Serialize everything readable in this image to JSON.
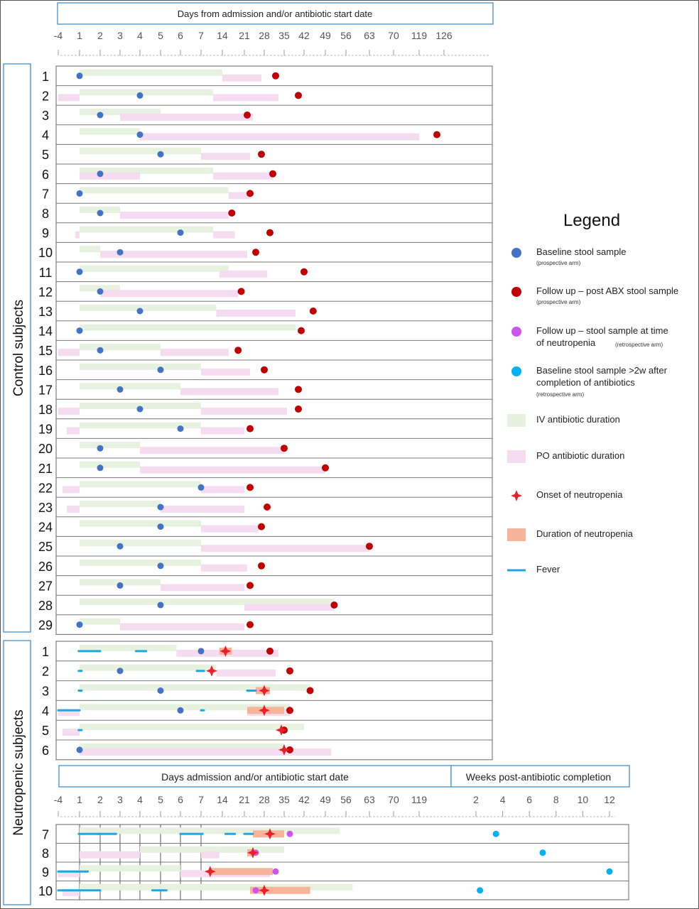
{
  "header_top": "Days from admission and/or antibiotic start date",
  "header_bottom": "Days admission and/or antibiotic start date",
  "header_weeks": "Weeks post-antibiotic completion",
  "group_control": "Control subjects",
  "group_neutro": "Neutropenic subjects",
  "top_ticks": [
    "-4",
    "1",
    "2",
    "3",
    "4",
    "5",
    "6",
    "7",
    "14",
    "21",
    "28",
    "35",
    "42",
    "49",
    "56",
    "63",
    "70",
    "119",
    "126"
  ],
  "bottom_ticks": [
    "-4",
    "1",
    "2",
    "3",
    "4",
    "5",
    "6",
    "7",
    "14",
    "21",
    "28",
    "35",
    "42",
    "49",
    "56",
    "63",
    "70",
    "119"
  ],
  "week_ticks": [
    "2",
    "4",
    "6",
    "8",
    "10",
    "12"
  ],
  "legend": {
    "title": "Legend",
    "items": [
      {
        "key": "baseline",
        "label": "Baseline stool sample",
        "sub": "(prospective arm)",
        "color": "#4472c4"
      },
      {
        "key": "followup",
        "label": "Follow up – post ABX stool sample",
        "sub": "(prospective arm)",
        "color": "#c00000"
      },
      {
        "key": "neutro_sample",
        "label": "Follow up – stool sample at time",
        "label2": "of neutropenia",
        "sub": "(retrospective arm)",
        "color": "#cc55ee"
      },
      {
        "key": "baseline2w",
        "label": "Baseline stool sample >2w after",
        "label2": "completion of antibiotics",
        "sub": "(retrospective arm)",
        "color": "#00b0f0"
      },
      {
        "key": "iv",
        "label": "IV antibiotic duration",
        "color": "#e6f2df"
      },
      {
        "key": "po",
        "label": "PO antibiotic duration",
        "color": "#f6dcf1"
      },
      {
        "key": "onset",
        "label": "Onset of neutropenia",
        "color": "#e8202a"
      },
      {
        "key": "dur_neutro",
        "label": "Duration of neutropenia",
        "color": "#f6b59a"
      },
      {
        "key": "fever",
        "label": "Fever",
        "color": "#1ea6e0"
      }
    ]
  },
  "control_subjects": [
    {
      "id": "1",
      "iv": [
        1,
        14
      ],
      "po": [
        14,
        27
      ],
      "baseline": 1,
      "followup": 32
    },
    {
      "id": "2",
      "iv": [
        1,
        11
      ],
      "po": [
        [
          -4,
          1
        ],
        [
          11,
          33
        ]
      ],
      "baseline": 4,
      "followup": 40
    },
    {
      "id": "3",
      "iv": [
        1,
        5
      ],
      "po": [
        3,
        24
      ],
      "baseline": 2,
      "followup": 22
    },
    {
      "id": "4",
      "iv": [
        1,
        4
      ],
      "po": [
        4,
        119
      ],
      "baseline": 4,
      "followup": 124
    },
    {
      "id": "5",
      "iv": [
        1,
        7
      ],
      "po": [
        7,
        23
      ],
      "baseline": 5,
      "followup": 27
    },
    {
      "id": "6",
      "iv": [
        1,
        11
      ],
      "po": [
        [
          1,
          4
        ],
        [
          11,
          31
        ]
      ],
      "baseline": 2,
      "followup": 31
    },
    {
      "id": "7",
      "iv": [
        1,
        16
      ],
      "po": [
        16,
        23
      ],
      "baseline": 1,
      "followup": 23
    },
    {
      "id": "8",
      "iv": [
        1,
        3
      ],
      "po": [
        3,
        16
      ],
      "baseline": 2,
      "followup": 17
    },
    {
      "id": "9",
      "iv": [
        1,
        11
      ],
      "po": [
        [
          0,
          1
        ],
        [
          11,
          18
        ]
      ],
      "baseline": 6,
      "followup": 30
    },
    {
      "id": "10",
      "iv": [
        1,
        2
      ],
      "po": [
        2,
        22
      ],
      "baseline": 3,
      "followup": 25
    },
    {
      "id": "11",
      "iv": [
        1,
        16
      ],
      "po": [
        13,
        29
      ],
      "baseline": 1,
      "followup": 42
    },
    {
      "id": "12",
      "iv": [
        1,
        3
      ],
      "po": [
        2,
        19
      ],
      "baseline": 2,
      "followup": 20
    },
    {
      "id": "13",
      "iv": [
        1,
        12
      ],
      "po": [
        12,
        39
      ],
      "baseline": 4,
      "followup": 45
    },
    {
      "id": "14",
      "iv": [
        1,
        39
      ],
      "po": [],
      "baseline": 1,
      "followup": 41
    },
    {
      "id": "15",
      "iv": [
        1,
        5
      ],
      "po": [
        [
          -4,
          1
        ],
        [
          5,
          16
        ]
      ],
      "baseline": 2,
      "followup": 19
    },
    {
      "id": "16",
      "iv": [
        1,
        7
      ],
      "po": [
        7,
        23
      ],
      "baseline": 5,
      "followup": 28
    },
    {
      "id": "17",
      "iv": [
        1,
        6
      ],
      "po": [
        6,
        33
      ],
      "baseline": 3,
      "followup": 40
    },
    {
      "id": "18",
      "iv": [
        1,
        7
      ],
      "po": [
        [
          -4,
          1
        ],
        [
          7,
          36
        ]
      ],
      "baseline": 4,
      "followup": 40
    },
    {
      "id": "19",
      "iv": [
        1,
        7
      ],
      "po": [
        [
          -2,
          1
        ],
        [
          7,
          21
        ]
      ],
      "baseline": 6,
      "followup": 23
    },
    {
      "id": "20",
      "iv": [
        1,
        4
      ],
      "po": [
        4,
        35
      ],
      "baseline": 2,
      "followup": 35
    },
    {
      "id": "21",
      "iv": [
        1,
        4
      ],
      "po": [
        4,
        49
      ],
      "baseline": 2,
      "followup": 49
    },
    {
      "id": "22",
      "iv": [
        1,
        7
      ],
      "po": [
        [
          -3,
          1
        ],
        [
          7,
          21
        ]
      ],
      "baseline": 7,
      "followup": 23
    },
    {
      "id": "23",
      "iv": [
        1,
        5
      ],
      "po": [
        [
          -2,
          1
        ],
        [
          5,
          21
        ]
      ],
      "baseline": 5,
      "followup": 29
    },
    {
      "id": "24",
      "iv": [
        1,
        7
      ],
      "po": [
        7,
        26
      ],
      "baseline": 5,
      "followup": 27
    },
    {
      "id": "25",
      "iv": [
        1,
        7
      ],
      "po": [
        7,
        63
      ],
      "baseline": 3,
      "followup": 63
    },
    {
      "id": "26",
      "iv": [
        1,
        7
      ],
      "po": [
        7,
        22
      ],
      "baseline": 5,
      "followup": 27
    },
    {
      "id": "27",
      "iv": [
        1,
        5
      ],
      "po": [
        5,
        21
      ],
      "baseline": 3,
      "followup": 23
    },
    {
      "id": "28",
      "iv": [
        1,
        52
      ],
      "po": [
        21,
        52
      ],
      "baseline": 5,
      "followup": 52
    },
    {
      "id": "29",
      "iv": [
        1,
        3
      ],
      "po": [
        3,
        21
      ],
      "baseline": 1,
      "followup": 23
    }
  ],
  "neutropenic_subjects": [
    {
      "id": "1",
      "iv": [
        1,
        5.8
      ],
      "po": [
        5.8,
        33
      ],
      "fever": [
        [
          0.8,
          2
        ],
        [
          3.8,
          4.3
        ]
      ],
      "baseline": 7,
      "followup": 30,
      "neutro": [
        13,
        17
      ],
      "onset": 15
    },
    {
      "id": "2",
      "iv": [
        1,
        12
      ],
      "po": [
        12,
        32
      ],
      "fever": [
        [
          0.8,
          1.1
        ],
        [
          6.8,
          8
        ]
      ],
      "baseline": 3,
      "followup": 37,
      "onset": 10.5
    },
    {
      "id": "3",
      "iv": [
        1,
        44
      ],
      "po": [],
      "fever": [
        [
          0.8,
          1.1
        ],
        [
          22,
          25
        ]
      ],
      "baseline": 5,
      "followup": 44,
      "neutro": [
        25,
        30
      ],
      "onset": 28
    },
    {
      "id": "4",
      "iv": [
        1,
        37
      ],
      "po": [
        [
          -4,
          1
        ],
        [
          22,
          37
        ]
      ],
      "fever": [
        [
          -4,
          1
        ],
        [
          7,
          7.3
        ]
      ],
      "baseline": 6,
      "followup": 37,
      "neutro": [
        22,
        35
      ],
      "onset": 28
    },
    {
      "id": "5",
      "iv": [
        1,
        42
      ],
      "po": [
        -3,
        1
      ],
      "fever": [
        [
          0.8,
          1.1
        ]
      ],
      "followup": 35,
      "onset": 34
    },
    {
      "id": "6",
      "iv": [
        1,
        35
      ],
      "po": [
        1,
        51
      ],
      "baseline": 1,
      "followup": 37,
      "onset": 35
    }
  ],
  "neutropenic_subjects_2": [
    {
      "id": "7",
      "iv": [
        1,
        54
      ],
      "fever": [
        [
          0.8,
          2.8
        ],
        [
          6,
          7.5
        ],
        [
          15,
          18
        ],
        [
          21,
          24
        ]
      ],
      "neutro": [
        24,
        35
      ],
      "onset": 30,
      "neutro_sample": 37,
      "baseline2w": 3.5
    },
    {
      "id": "8",
      "iv": [
        4,
        35
      ],
      "po": [
        [
          1,
          4
        ],
        [
          7,
          13
        ]
      ],
      "neutro": [
        22,
        24
      ],
      "onset": 24,
      "neutro_sample": 25,
      "baseline2w": 7
    },
    {
      "id": "9",
      "iv": [
        1,
        6
      ],
      "po": [
        [
          -4,
          1
        ],
        [
          6,
          30
        ]
      ],
      "fever": [
        [
          -4,
          1.4
        ]
      ],
      "neutro": [
        10,
        31
      ],
      "onset": 10,
      "neutro_sample": 32,
      "baseline2w": 12
    },
    {
      "id": "10",
      "iv": [
        1,
        58
      ],
      "po": [
        -3,
        1
      ],
      "fever": [
        [
          -4,
          2
        ],
        [
          4.6,
          5.3
        ]
      ],
      "neutro": [
        23,
        44
      ],
      "onset": 28,
      "neutro_sample": 25,
      "baseline2w": 2.3
    }
  ]
}
